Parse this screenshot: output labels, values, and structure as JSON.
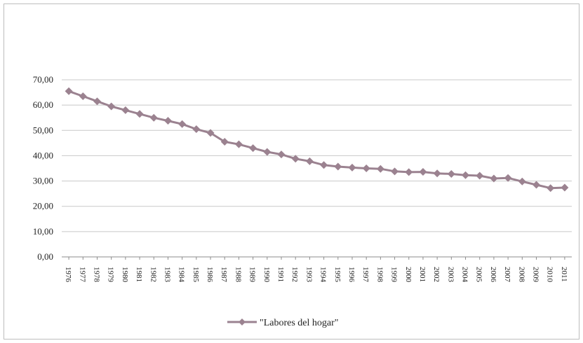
{
  "chart_data": {
    "type": "line",
    "title": "",
    "xlabel": "",
    "ylabel": "",
    "ylim": [
      0,
      70
    ],
    "y_ticks": [
      "0,00",
      "10,00",
      "20,00",
      "30,00",
      "40,00",
      "50,00",
      "60,00",
      "70,00"
    ],
    "grid": true,
    "legend_position": "bottom",
    "x": [
      "1976",
      "1977",
      "1978",
      "1979",
      "1980",
      "1981",
      "1982",
      "1983",
      "1984",
      "1985",
      "1986",
      "1987",
      "1988",
      "1989",
      "1990",
      "1991",
      "1992",
      "1993",
      "1994",
      "1995",
      "1996",
      "1997",
      "1998",
      "1999",
      "2000",
      "2001",
      "2002",
      "2003",
      "2004",
      "2005",
      "2006",
      "2007",
      "2008",
      "2009",
      "2010",
      "2011"
    ],
    "series": [
      {
        "name": "\"Labores del hogar\"",
        "color": "#9b8290",
        "values": [
          65.5,
          63.5,
          61.5,
          59.5,
          58.0,
          56.5,
          55.0,
          53.8,
          52.5,
          50.5,
          49.0,
          45.5,
          44.5,
          43.0,
          41.5,
          40.5,
          38.8,
          37.8,
          36.3,
          35.7,
          35.3,
          35.0,
          34.8,
          33.8,
          33.5,
          33.6,
          33.0,
          32.8,
          32.3,
          32.1,
          31.0,
          31.2,
          29.8,
          28.5,
          27.2,
          27.4
        ]
      }
    ]
  }
}
